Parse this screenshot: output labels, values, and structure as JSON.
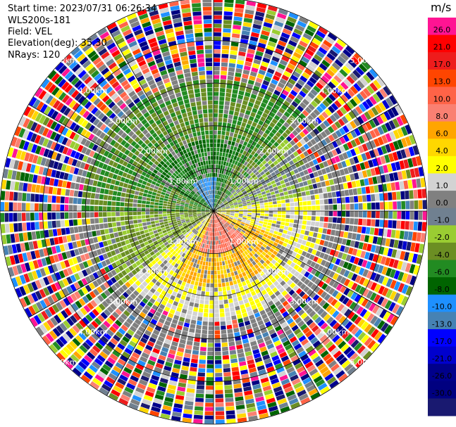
{
  "info": {
    "start_time": "Start time: 2023/07/31 06:26:34",
    "site": "WLS200s-181",
    "field": "Field: VEL",
    "elevation": "Elevation(deg): 35.30",
    "nrays": "NRays: 120"
  },
  "chart_data": {
    "type": "heatmap",
    "subtype": "polar-ppi",
    "title": "",
    "max_range_km": 5.0,
    "ring_labels": [
      "1.00km",
      "2.00km",
      "3.00km",
      "4.00km",
      "5.00km"
    ],
    "ring_values_km": [
      1,
      2,
      3,
      4,
      5
    ],
    "spoke_angles_deg": [
      0,
      30,
      60,
      90,
      120,
      150,
      180,
      210,
      240,
      270,
      300,
      330
    ],
    "nrays": 120,
    "colorbar": {
      "unit": "m/s",
      "tick_labels": [
        "26.0",
        "21.0",
        "17.0",
        "13.0",
        "10.0",
        "8.0",
        "6.0",
        "4.0",
        "2.0",
        "1.0",
        "0.0",
        "-1.0",
        "-2.0",
        "-4.0",
        "-6.0",
        "-8.0",
        "-10.0",
        "-13.0",
        "-17.0",
        "-21.0",
        "-26.0",
        "-30.0"
      ],
      "bin_colors": [
        "#ff1493",
        "#ff0000",
        "#ee1c1c",
        "#ff4500",
        "#ff6347",
        "#fa8072",
        "#ffa500",
        "#ffd700",
        "#ffff00",
        "#d3d3d3",
        "#808080",
        "#708090",
        "#9acd32",
        "#6b8e23",
        "#228b22",
        "#006400",
        "#1e90ff",
        "#4682b4",
        "#0000ff",
        "#0000cd",
        "#00008b",
        "#000080",
        "#191970"
      ]
    },
    "near_field_regions": [
      {
        "azimuth_from_deg": 270,
        "azimuth_to_deg": 45,
        "range_to_km": 3.1,
        "value_ms": -4.0
      },
      {
        "azimuth_from_deg": 300,
        "azimuth_to_deg": 25,
        "range_to_km": 1.7,
        "value_ms": -6.0
      },
      {
        "azimuth_from_deg": 320,
        "azimuth_to_deg": 5,
        "range_to_km": 0.8,
        "value_ms": -10.0
      },
      {
        "azimuth_from_deg": 80,
        "azimuth_to_deg": 230,
        "range_to_km": 2.6,
        "value_ms": 2.0
      },
      {
        "azimuth_from_deg": 110,
        "azimuth_to_deg": 210,
        "range_to_km": 1.8,
        "value_ms": 6.0
      },
      {
        "azimuth_from_deg": 130,
        "azimuth_to_deg": 200,
        "range_to_km": 1.0,
        "value_ms": 10.0
      },
      {
        "azimuth_from_deg": 45,
        "azimuth_to_deg": 80,
        "range_to_km": 2.4,
        "value_ms": -1.0
      },
      {
        "azimuth_from_deg": 230,
        "azimuth_to_deg": 270,
        "range_to_km": 2.7,
        "value_ms": -2.0
      }
    ],
    "far_field": "noise"
  }
}
